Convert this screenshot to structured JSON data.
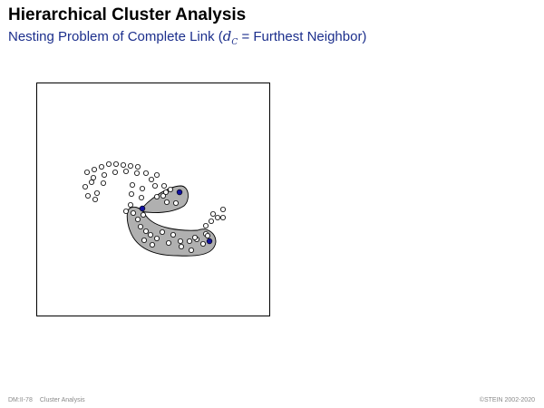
{
  "slide": {
    "title": "Hierarchical Cluster Analysis",
    "subtitle_prefix": "Nesting Problem of Complete Link (",
    "subtitle_math_var": "d",
    "subtitle_math_sub": "C",
    "subtitle_suffix": " = Furthest Neighbor)"
  },
  "footer": {
    "slide_number": "DM:II-78",
    "section": "Cluster Analysis",
    "copyright": "©STEIN 2002-2020"
  },
  "colors": {
    "cluster_fill": "#b0b0b0",
    "highlight_point": "#1010a0",
    "subtitle": "#1c2f8c"
  }
}
